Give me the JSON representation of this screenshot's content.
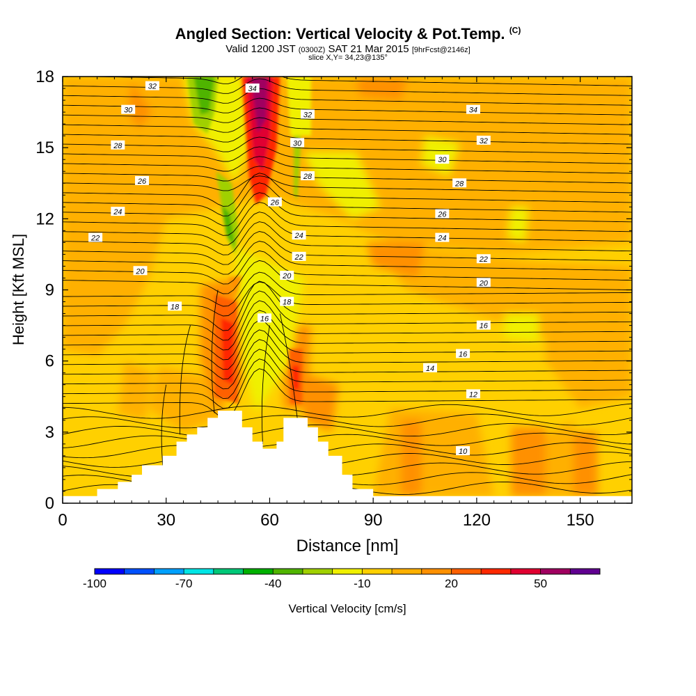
{
  "title": {
    "main": "Angled Section: Vertical Velocity & Pot.Temp.",
    "main_unit": "(C)",
    "valid_prefix": "Valid 1200 JST",
    "valid_z": "(0300Z)",
    "valid_date": "SAT 21 Mar 2015",
    "valid_fcst": "[9hrFcst@2146z]",
    "slice": "slice X,Y= 34,23@135°"
  },
  "colors": {
    "scale": [
      "#0000ff",
      "#0050ff",
      "#00a0ff",
      "#00e5e5",
      "#00c878",
      "#00b000",
      "#50b400",
      "#a0d000",
      "#f0f000",
      "#ffd000",
      "#ffb000",
      "#ff9000",
      "#ff6000",
      "#ff2800",
      "#e00030",
      "#a00060",
      "#600090"
    ],
    "background_field": "#ffcc00"
  },
  "chart_data": {
    "type": "heatmap",
    "xlabel": "Distance [nm]",
    "ylabel": "Height [Kft MSL]",
    "xlim": [
      0,
      165
    ],
    "ylim": [
      0,
      18
    ],
    "x_ticks": [
      0,
      30,
      60,
      90,
      120,
      150
    ],
    "y_ticks": [
      0,
      3,
      6,
      9,
      12,
      15,
      18
    ],
    "colorbar": {
      "label": "Vertical Velocity [cm/s]",
      "min": -100,
      "max": 70,
      "step": 10,
      "tick_labels": [
        -100,
        -70,
        -40,
        -10,
        20,
        50
      ]
    },
    "terrain": [
      [
        0,
        0.3
      ],
      [
        10,
        0.3
      ],
      [
        10,
        0.6
      ],
      [
        16,
        0.6
      ],
      [
        16,
        0.9
      ],
      [
        20,
        0.9
      ],
      [
        20,
        1.2
      ],
      [
        23,
        1.2
      ],
      [
        23,
        1.6
      ],
      [
        29,
        1.6
      ],
      [
        29,
        2.0
      ],
      [
        33,
        2.0
      ],
      [
        33,
        2.6
      ],
      [
        36,
        2.6
      ],
      [
        36,
        2.9
      ],
      [
        39,
        2.9
      ],
      [
        39,
        3.2
      ],
      [
        42,
        3.2
      ],
      [
        42,
        3.6
      ],
      [
        45,
        3.6
      ],
      [
        45,
        3.9
      ],
      [
        52,
        3.9
      ],
      [
        52,
        3.2
      ],
      [
        55,
        3.2
      ],
      [
        55,
        2.6
      ],
      [
        58,
        2.6
      ],
      [
        58,
        2.3
      ],
      [
        62,
        2.3
      ],
      [
        62,
        2.6
      ],
      [
        64,
        2.6
      ],
      [
        64,
        3.6
      ],
      [
        71,
        3.6
      ],
      [
        71,
        3.2
      ],
      [
        74,
        3.2
      ],
      [
        74,
        2.6
      ],
      [
        77,
        2.6
      ],
      [
        77,
        2.0
      ],
      [
        81,
        2.0
      ],
      [
        81,
        1.2
      ],
      [
        84,
        1.2
      ],
      [
        84,
        0.6
      ],
      [
        90,
        0.6
      ],
      [
        90,
        0.3
      ],
      [
        165,
        0.3
      ]
    ],
    "isotherm_labels": [
      {
        "text": "32",
        "x": 26,
        "y": 17.6
      },
      {
        "text": "30",
        "x": 19,
        "y": 16.6
      },
      {
        "text": "28",
        "x": 16,
        "y": 15.1
      },
      {
        "text": "26",
        "x": 23,
        "y": 13.6
      },
      {
        "text": "24",
        "x": 16,
        "y": 12.3
      },
      {
        "text": "22",
        "x": 9.5,
        "y": 11.2
      },
      {
        "text": "20",
        "x": 22.5,
        "y": 9.8
      },
      {
        "text": "18",
        "x": 32.5,
        "y": 8.3
      },
      {
        "text": "34",
        "x": 55,
        "y": 17.5
      },
      {
        "text": "32",
        "x": 71,
        "y": 16.4
      },
      {
        "text": "30",
        "x": 68,
        "y": 15.2
      },
      {
        "text": "28",
        "x": 71,
        "y": 13.8
      },
      {
        "text": "26",
        "x": 61.5,
        "y": 12.7
      },
      {
        "text": "24",
        "x": 68.5,
        "y": 11.3
      },
      {
        "text": "22",
        "x": 68.5,
        "y": 10.4
      },
      {
        "text": "20",
        "x": 65,
        "y": 9.6
      },
      {
        "text": "18",
        "x": 65,
        "y": 8.5
      },
      {
        "text": "16",
        "x": 58.5,
        "y": 7.8
      },
      {
        "text": "34",
        "x": 119,
        "y": 16.6
      },
      {
        "text": "32",
        "x": 122,
        "y": 15.3
      },
      {
        "text": "30",
        "x": 110,
        "y": 14.5
      },
      {
        "text": "28",
        "x": 115,
        "y": 13.5
      },
      {
        "text": "26",
        "x": 110,
        "y": 12.2
      },
      {
        "text": "24",
        "x": 110,
        "y": 11.2
      },
      {
        "text": "22",
        "x": 122,
        "y": 10.3
      },
      {
        "text": "20",
        "x": 122,
        "y": 9.3
      },
      {
        "text": "16",
        "x": 122,
        "y": 7.5
      },
      {
        "text": "16",
        "x": 116,
        "y": 6.3
      },
      {
        "text": "14",
        "x": 106.5,
        "y": 5.7
      },
      {
        "text": "12",
        "x": 119,
        "y": 4.6
      },
      {
        "text": "10",
        "x": 116,
        "y": 2.2
      }
    ]
  }
}
